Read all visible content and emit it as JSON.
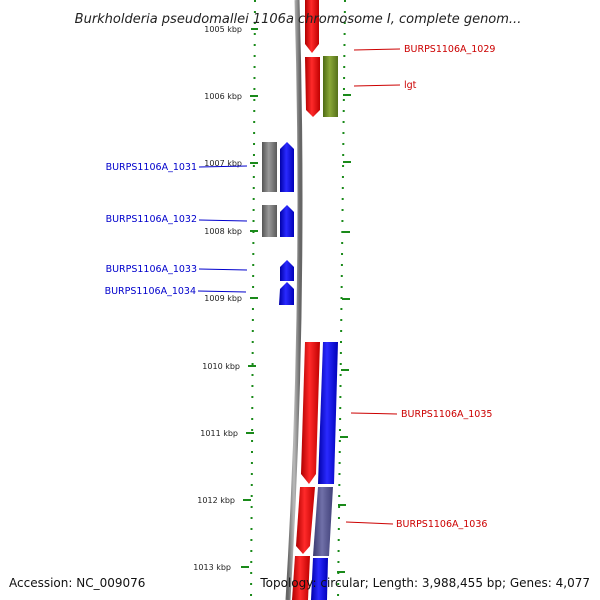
{
  "title": "Burkholderia pseudomallei 1106a chromosome I, complete genom...",
  "footer": {
    "accession": "Accession: NC_009076",
    "summary": "Topology: circular; Length: 3,988,455 bp; Genes: 4,077"
  },
  "colors": {
    "forward_gene": "#ff0000",
    "reverse_gene": "#0000ff",
    "grey_feature": "#777777",
    "olive_feature": "#6b8e23",
    "purple_feature": "#55558f",
    "tick": "#1a8a1a",
    "backbone": "#888888"
  },
  "ruler_ticks": [
    "1005 kbp",
    "1006 kbp",
    "1007 kbp",
    "1008 kbp",
    "1009 kbp",
    "1010 kbp",
    "1011 kbp",
    "1012 kbp",
    "1013 kbp"
  ],
  "gene_labels": {
    "g1029": "BURPS1106A_1029",
    "lgt": "lgt",
    "g1031": "BURPS1106A_1031",
    "g1032": "BURPS1106A_1032",
    "g1033": "BURPS1106A_1033",
    "g1034": "BURPS1106A_1034",
    "g1035": "BURPS1106A_1035",
    "g1036": "BURPS1106A_1036"
  }
}
